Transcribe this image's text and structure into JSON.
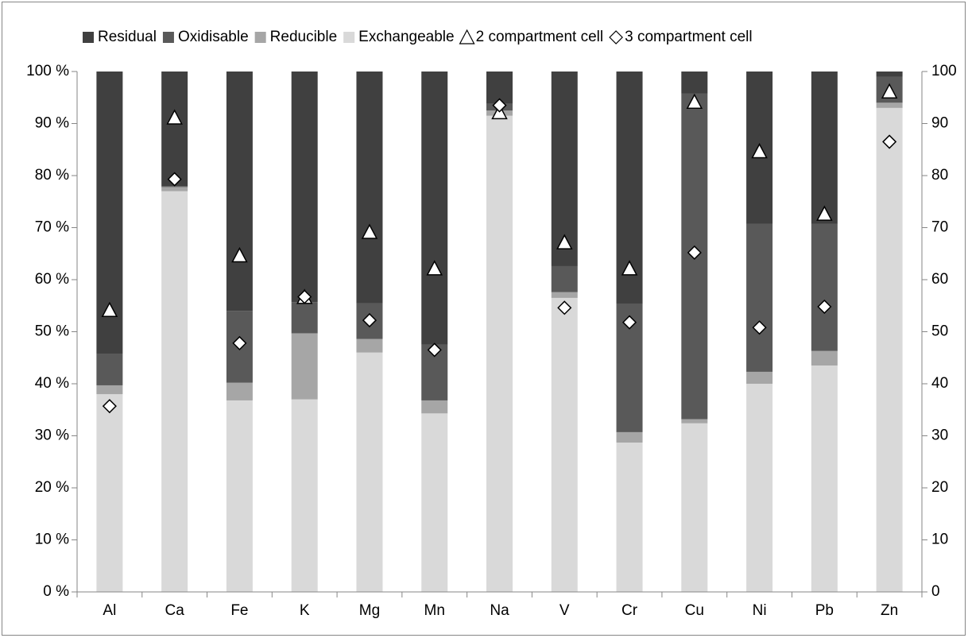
{
  "chart_data": {
    "type": "bar",
    "stacked": true,
    "categories": [
      "Al",
      "Ca",
      "Fe",
      "K",
      "Mg",
      "Mn",
      "Na",
      "V",
      "Cr",
      "Cu",
      "Ni",
      "Pb",
      "Zn"
    ],
    "series": [
      {
        "name": "Residual",
        "color": "#404040",
        "values": [
          54.2,
          22,
          46,
          44.3,
          44.5,
          52.5,
          6.2,
          37.4,
          44.7,
          4.2,
          29.3,
          29.3,
          1.0
        ]
      },
      {
        "name": "Oxidisable",
        "color": "#595959",
        "values": [
          6.1,
          0.2,
          13.8,
          6.0,
          6.9,
          10.7,
          1.3,
          5.0,
          24.6,
          62.6,
          28.4,
          24.4,
          5.0
        ]
      },
      {
        "name": "Reducible",
        "color": "#a6a6a6",
        "values": [
          1.7,
          0.8,
          3.4,
          12.7,
          2.6,
          2.5,
          1.0,
          1.1,
          2.0,
          0.8,
          2.3,
          2.8,
          1.0
        ]
      },
      {
        "name": "Exchangeable",
        "color": "#d9d9d9",
        "values": [
          38,
          77,
          36.8,
          37,
          46,
          34.3,
          91.5,
          56.5,
          28.7,
          32.4,
          40,
          43.5,
          93
        ]
      },
      {
        "name": "2 compartment cell",
        "type": "scatter",
        "marker": "triangle",
        "color": "#ffffff",
        "axis": "y2",
        "values": [
          54,
          91,
          64.5,
          56.5,
          69,
          62,
          92,
          67,
          62,
          94,
          84.5,
          72.5,
          96
        ]
      },
      {
        "name": "3 compartment cell",
        "type": "scatter",
        "marker": "diamond",
        "color": "#ffffff",
        "axis": "y2",
        "values": [
          35.7,
          79.3,
          47.8,
          56.7,
          52.2,
          46.5,
          93.5,
          54.6,
          51.8,
          65.2,
          50.8,
          54.8,
          86.5
        ]
      }
    ],
    "ylim": [
      0,
      100
    ],
    "yticks": [
      {
        "value": 0,
        "label": "0 %"
      },
      {
        "value": 10,
        "label": "10 %"
      },
      {
        "value": 20,
        "label": "20 %"
      },
      {
        "value": 30,
        "label": "30 %"
      },
      {
        "value": 40,
        "label": "40 %"
      },
      {
        "value": 50,
        "label": "50 %"
      },
      {
        "value": 60,
        "label": "60 %"
      },
      {
        "value": 70,
        "label": "70 %"
      },
      {
        "value": 80,
        "label": "80 %"
      },
      {
        "value": 90,
        "label": "90 %"
      },
      {
        "value": 100,
        "label": "100 %"
      }
    ],
    "y2lim": [
      0,
      100
    ],
    "y2ticks": [
      0,
      10,
      20,
      30,
      40,
      50,
      60,
      70,
      80,
      90,
      100
    ],
    "legend": "top",
    "grid": false
  }
}
